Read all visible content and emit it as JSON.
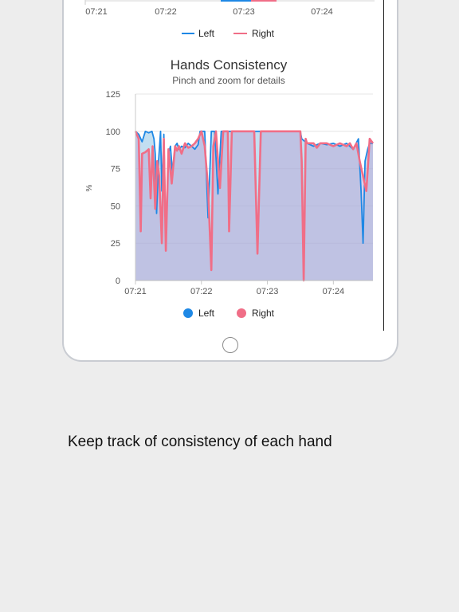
{
  "top_chart": {
    "x_ticks": [
      "07:21",
      "07:22",
      "07:23",
      "07:24"
    ],
    "legend": [
      {
        "name": "Left",
        "color": "#1e88e5"
      },
      {
        "name": "Right",
        "color": "#f06e87"
      }
    ]
  },
  "chart_data": {
    "type": "area",
    "title": "Hands Consistency",
    "subtitle": "Pinch and zoom for details",
    "ylabel": "%",
    "ylim": [
      0,
      125
    ],
    "y_ticks": [
      0,
      25,
      50,
      75,
      100,
      125
    ],
    "x_ticks": [
      "07:21",
      "07:22",
      "07:23",
      "07:24"
    ],
    "xlim": [
      0,
      3.6
    ],
    "grid": true,
    "legend_position": "bottom",
    "series": [
      {
        "name": "Left",
        "color": "#1e88e5",
        "fill": "rgba(120,185,225,0.45)",
        "points": [
          [
            0,
            100
          ],
          [
            0.05,
            98
          ],
          [
            0.1,
            93
          ],
          [
            0.15,
            100
          ],
          [
            0.2,
            99
          ],
          [
            0.25,
            100
          ],
          [
            0.28,
            95
          ],
          [
            0.3,
            85
          ],
          [
            0.32,
            45
          ],
          [
            0.35,
            80
          ],
          [
            0.38,
            100
          ],
          [
            0.4,
            60
          ],
          [
            0.43,
            98
          ],
          [
            0.46,
            30
          ],
          [
            0.5,
            85
          ],
          [
            0.53,
            90
          ],
          [
            0.56,
            72
          ],
          [
            0.6,
            90
          ],
          [
            0.63,
            92
          ],
          [
            0.66,
            88
          ],
          [
            0.7,
            90
          ],
          [
            0.75,
            89
          ],
          [
            0.8,
            92
          ],
          [
            0.85,
            90
          ],
          [
            0.9,
            88
          ],
          [
            0.95,
            91
          ],
          [
            0.98,
            100
          ],
          [
            1.05,
            100
          ],
          [
            1.1,
            42
          ],
          [
            1.15,
            100
          ],
          [
            1.2,
            100
          ],
          [
            1.25,
            58
          ],
          [
            1.3,
            100
          ],
          [
            1.4,
            100
          ],
          [
            1.8,
            100
          ],
          [
            2.0,
            100
          ],
          [
            2.25,
            100
          ],
          [
            2.5,
            100
          ],
          [
            2.52,
            95
          ],
          [
            2.6,
            92
          ],
          [
            2.7,
            90
          ],
          [
            2.8,
            92
          ],
          [
            2.9,
            91
          ],
          [
            3.0,
            92
          ],
          [
            3.1,
            90
          ],
          [
            3.2,
            92
          ],
          [
            3.3,
            88
          ],
          [
            3.38,
            95
          ],
          [
            3.42,
            60
          ],
          [
            3.45,
            25
          ],
          [
            3.48,
            80
          ],
          [
            3.52,
            88
          ],
          [
            3.55,
            92
          ],
          [
            3.6,
            92
          ]
        ]
      },
      {
        "name": "Right",
        "color": "#f06e87",
        "fill": "rgba(190,170,215,0.55)",
        "points": [
          [
            0,
            100
          ],
          [
            0.05,
            95
          ],
          [
            0.08,
            33
          ],
          [
            0.1,
            85
          ],
          [
            0.15,
            86
          ],
          [
            0.2,
            88
          ],
          [
            0.23,
            55
          ],
          [
            0.26,
            90
          ],
          [
            0.3,
            48
          ],
          [
            0.33,
            80
          ],
          [
            0.36,
            70
          ],
          [
            0.4,
            25
          ],
          [
            0.43,
            95
          ],
          [
            0.46,
            20
          ],
          [
            0.5,
            88
          ],
          [
            0.55,
            65
          ],
          [
            0.6,
            90
          ],
          [
            0.63,
            87
          ],
          [
            0.66,
            90
          ],
          [
            0.7,
            85
          ],
          [
            0.75,
            92
          ],
          [
            0.8,
            89
          ],
          [
            0.85,
            90
          ],
          [
            0.9,
            92
          ],
          [
            0.95,
            95
          ],
          [
            1.0,
            100
          ],
          [
            1.05,
            90
          ],
          [
            1.1,
            62
          ],
          [
            1.15,
            7
          ],
          [
            1.18,
            90
          ],
          [
            1.22,
            100
          ],
          [
            1.28,
            62
          ],
          [
            1.33,
            100
          ],
          [
            1.4,
            100
          ],
          [
            1.42,
            33
          ],
          [
            1.46,
            100
          ],
          [
            1.6,
            100
          ],
          [
            1.8,
            100
          ],
          [
            1.85,
            18
          ],
          [
            1.9,
            100
          ],
          [
            2.0,
            100
          ],
          [
            2.25,
            100
          ],
          [
            2.5,
            100
          ],
          [
            2.52,
            80
          ],
          [
            2.55,
            0
          ],
          [
            2.58,
            95
          ],
          [
            2.6,
            92
          ],
          [
            2.7,
            92
          ],
          [
            2.75,
            89
          ],
          [
            2.8,
            92
          ],
          [
            2.9,
            92
          ],
          [
            3.0,
            90
          ],
          [
            3.1,
            92
          ],
          [
            3.2,
            90
          ],
          [
            3.25,
            92
          ],
          [
            3.3,
            88
          ],
          [
            3.35,
            92
          ],
          [
            3.4,
            80
          ],
          [
            3.45,
            70
          ],
          [
            3.5,
            60
          ],
          [
            3.55,
            95
          ],
          [
            3.6,
            92
          ]
        ]
      }
    ]
  },
  "caption": "Keep track of consistency of each hand"
}
